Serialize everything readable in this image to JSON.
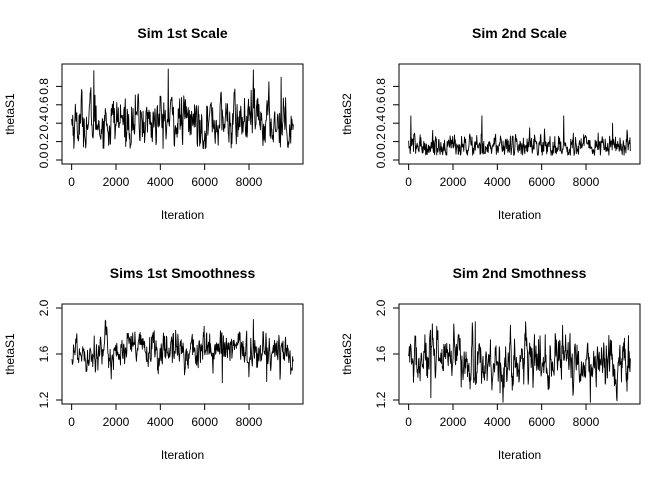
{
  "chart_data": [
    {
      "type": "line",
      "title": "Sim 1st Scale",
      "xlabel": "Iteration",
      "ylabel": "thetaS1",
      "xlim": [
        0,
        10000
      ],
      "ylim": [
        0,
        1.0
      ],
      "xticks": [
        "0",
        "2000",
        "4000",
        "6000",
        "8000"
      ],
      "yticks": [
        "0.0",
        "0.2",
        "0.4",
        "0.6",
        "0.8"
      ],
      "grid": false,
      "trace": {
        "iterations": 10000,
        "mean": 0.42,
        "sd": 0.15,
        "min": 0.12,
        "max": 0.99,
        "autocorrelation": 0.6,
        "peaks": [
          [
            1000,
            0.97
          ],
          [
            4350,
            0.99
          ],
          [
            8200,
            0.98
          ],
          [
            9450,
            0.9
          ]
        ]
      }
    },
    {
      "type": "line",
      "title": "Sim 2nd Scale",
      "xlabel": "Iteration",
      "ylabel": "thetaS2",
      "xlim": [
        0,
        10000
      ],
      "ylim": [
        0,
        1.0
      ],
      "xticks": [
        "0",
        "2000",
        "4000",
        "6000",
        "8000"
      ],
      "yticks": [
        "0.0",
        "0.2",
        "0.4",
        "0.6",
        "0.8"
      ],
      "grid": false,
      "trace": {
        "iterations": 10000,
        "mean": 0.15,
        "sd": 0.07,
        "min": 0.05,
        "max": 0.5,
        "autocorrelation": 0.5,
        "peaks": [
          [
            100,
            0.48
          ],
          [
            3300,
            0.48
          ],
          [
            7000,
            0.48
          ],
          [
            9200,
            0.4
          ]
        ]
      }
    },
    {
      "type": "line",
      "title": "Sims 1st Smoothness",
      "xlabel": "Iteration",
      "ylabel": "thetaS1",
      "xlim": [
        0,
        10000
      ],
      "ylim": [
        1.2,
        2.0
      ],
      "xticks": [
        "0",
        "2000",
        "4000",
        "6000",
        "8000"
      ],
      "yticks": [
        "1.2",
        "1.6",
        "2.0"
      ],
      "grid": false,
      "trace": {
        "iterations": 10000,
        "mean": 1.63,
        "sd": 0.09,
        "min": 1.33,
        "max": 1.9,
        "autocorrelation": 0.6,
        "peaks": [
          [
            8200,
            1.9
          ],
          [
            6800,
            1.35
          ],
          [
            8800,
            1.36
          ]
        ]
      }
    },
    {
      "type": "line",
      "title": "Sim 2nd Smothness",
      "xlabel": "Iteration",
      "ylabel": "thetaS2",
      "xlim": [
        0,
        10000
      ],
      "ylim": [
        1.2,
        2.0
      ],
      "xticks": [
        "0",
        "2000",
        "4000",
        "6000",
        "8000"
      ],
      "yticks": [
        "1.2",
        "1.6",
        "2.0"
      ],
      "grid": false,
      "trace": {
        "iterations": 10000,
        "mean": 1.53,
        "sd": 0.12,
        "min": 1.18,
        "max": 1.88,
        "autocorrelation": 0.6,
        "peaks": [
          [
            3000,
            1.88
          ],
          [
            8200,
            1.18
          ],
          [
            1000,
            1.22
          ]
        ]
      }
    }
  ]
}
